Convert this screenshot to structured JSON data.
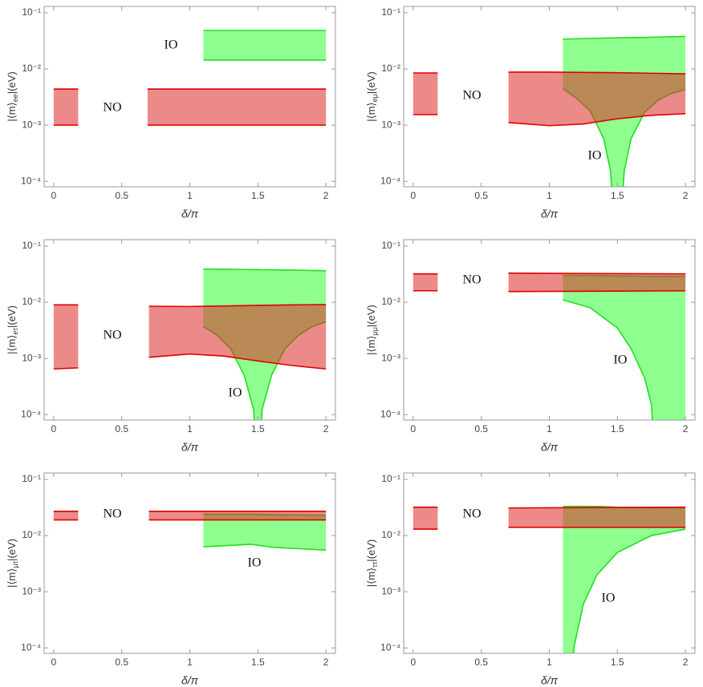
{
  "chart_data": [
    {
      "type": "band",
      "xlabel": "δ/π",
      "ylabel": {
        "text": "|⟨m⟩",
        "sub": "ee",
        "unit": "|(eV)"
      },
      "xlim": [
        -0.07,
        2.07
      ],
      "ylim": [
        8e-05,
        0.13
      ],
      "ylog": true,
      "xticks": [
        0,
        0.5,
        1,
        1.5,
        2
      ],
      "yticks": [
        {
          "value": 0.0001,
          "label": "10⁻⁴"
        },
        {
          "value": 0.001,
          "label": "10⁻³"
        },
        {
          "value": 0.01,
          "label": "10⁻²"
        },
        {
          "value": 0.1,
          "label": "10⁻¹"
        }
      ],
      "series": [
        {
          "name": "IO",
          "color": "#33ff33",
          "edge_color": "#22dd22",
          "x": [
            1.1,
            2
          ],
          "lower": [
            0.0144,
            0.0144
          ],
          "upper": [
            0.0485,
            0.0485
          ]
        },
        {
          "name": "NO",
          "color": "#dd2828",
          "edge_color": "#e00000",
          "x": [
            0,
            0.18,
            null,
            0.69,
            2
          ],
          "lower": [
            0.001,
            0.001,
            null,
            0.001,
            0.001
          ],
          "upper": [
            0.0044,
            0.0044,
            null,
            0.0044,
            0.0044
          ]
        }
      ]
    },
    {
      "type": "band",
      "xlabel": "δ/π",
      "ylabel": {
        "text": "|⟨m⟩",
        "sub": "eμ",
        "unit": "|(eV)"
      },
      "xlim": [
        -0.07,
        2.07
      ],
      "ylim": [
        8e-05,
        0.13
      ],
      "ylog": true,
      "xticks": [
        0,
        0.5,
        1,
        1.5,
        2
      ],
      "yticks": [
        {
          "value": 0.0001,
          "label": "10⁻⁴"
        },
        {
          "value": 0.001,
          "label": "10⁻³"
        },
        {
          "value": 0.01,
          "label": "10⁻²"
        },
        {
          "value": 0.1,
          "label": "10⁻¹"
        }
      ],
      "series": [
        {
          "name": "IO",
          "color": "#33ff33",
          "edge_color": "#22dd22",
          "x": [
            1.1,
            1.2,
            1.3,
            1.4,
            1.45,
            1.48,
            1.52,
            1.55,
            1.6,
            1.7,
            1.8,
            1.9,
            2
          ],
          "lower": [
            0.0045,
            0.003,
            0.0018,
            0.00057,
            0.00015,
            1e-05,
            1e-05,
            0.00015,
            0.00057,
            0.0017,
            0.0028,
            0.0037,
            0.0043
          ],
          "upper": [
            0.034,
            0.0345,
            0.035,
            0.0355,
            0.0357,
            0.0358,
            0.036,
            0.0361,
            0.0362,
            0.0365,
            0.037,
            0.0375,
            0.038
          ]
        },
        {
          "name": "NO",
          "color": "#dd2828",
          "edge_color": "#e00000",
          "x": [
            0,
            0.18,
            null,
            0.7,
            1,
            1.25,
            1.5,
            1.75,
            2
          ],
          "lower": [
            0.00154,
            0.00154,
            null,
            0.00111,
            0.00098,
            0.00105,
            0.0013,
            0.0015,
            0.0016
          ],
          "upper": [
            0.0085,
            0.0085,
            null,
            0.0088,
            0.0088,
            0.0087,
            0.0086,
            0.0084,
            0.0082
          ]
        }
      ]
    },
    {
      "type": "band",
      "xlabel": "δ/π",
      "ylabel": {
        "text": "|⟨m⟩",
        "sub": "eτ",
        "unit": "|(eV)"
      },
      "xlim": [
        -0.07,
        2.07
      ],
      "ylim": [
        8e-05,
        0.13
      ],
      "ylog": true,
      "xticks": [
        0,
        0.5,
        1,
        1.5,
        2
      ],
      "yticks": [
        {
          "value": 0.0001,
          "label": "10⁻⁴"
        },
        {
          "value": 0.001,
          "label": "10⁻³"
        },
        {
          "value": 0.01,
          "label": "10⁻²"
        },
        {
          "value": 0.1,
          "label": "10⁻¹"
        }
      ],
      "series": [
        {
          "name": "IO",
          "color": "#33ff33",
          "edge_color": "#22dd22",
          "x": [
            1.1,
            1.2,
            1.3,
            1.4,
            1.47,
            1.49,
            1.51,
            1.53,
            1.6,
            1.7,
            1.8,
            1.9,
            2
          ],
          "lower": [
            0.0037,
            0.0026,
            0.0015,
            0.0005,
            0.00012,
            1e-05,
            1e-05,
            0.00012,
            0.0005,
            0.0015,
            0.0026,
            0.0037,
            0.0045
          ],
          "upper": [
            0.039,
            0.0388,
            0.0386,
            0.0384,
            0.0382,
            0.0381,
            0.038,
            0.0379,
            0.0378,
            0.0375,
            0.0372,
            0.0368,
            0.0365
          ]
        },
        {
          "name": "NO",
          "color": "#dd2828",
          "edge_color": "#e00000",
          "x": [
            0,
            0.18,
            null,
            0.7,
            1,
            1.25,
            1.5,
            1.75,
            2
          ],
          "lower": [
            0.00065,
            0.00068,
            null,
            0.00105,
            0.0012,
            0.0011,
            0.0009,
            0.00075,
            0.00065
          ],
          "upper": [
            0.009,
            0.009,
            null,
            0.0085,
            0.0084,
            0.0086,
            0.0088,
            0.009,
            0.0091
          ]
        }
      ]
    },
    {
      "type": "band",
      "xlabel": "δ/π",
      "ylabel": {
        "text": "|⟨m⟩",
        "sub": "μμ",
        "unit": "|(eV)"
      },
      "xlim": [
        -0.07,
        2.07
      ],
      "ylim": [
        8e-05,
        0.13
      ],
      "ylog": true,
      "xticks": [
        0,
        0.5,
        1,
        1.5,
        2
      ],
      "yticks": [
        {
          "value": 0.0001,
          "label": "10⁻⁴"
        },
        {
          "value": 0.001,
          "label": "10⁻³"
        },
        {
          "value": 0.01,
          "label": "10⁻²"
        },
        {
          "value": 0.1,
          "label": "10⁻¹"
        }
      ],
      "series": [
        {
          "name": "IO",
          "color": "#33ff33",
          "edge_color": "#22dd22",
          "x": [
            1.1,
            1.3,
            1.5,
            1.6,
            1.7,
            1.75,
            1.78,
            2
          ],
          "lower": [
            0.011,
            0.008,
            0.0035,
            0.0015,
            0.00045,
            0.00015,
            1e-05,
            1e-05
          ],
          "upper": [
            0.03,
            0.03,
            0.0295,
            0.0295,
            0.029,
            0.029,
            0.029,
            0.029
          ]
        },
        {
          "name": "NO",
          "color": "#dd2828",
          "edge_color": "#e00000",
          "x": [
            0,
            0.18,
            null,
            0.7,
            2
          ],
          "lower": [
            0.016,
            0.016,
            null,
            0.0155,
            0.016
          ],
          "upper": [
            0.032,
            0.032,
            null,
            0.033,
            0.032
          ]
        }
      ]
    },
    {
      "type": "band",
      "xlabel": "δ/π",
      "ylabel": {
        "text": "|⟨m⟩",
        "sub": "μτ",
        "unit": "|(eV)"
      },
      "xlim": [
        -0.07,
        2.07
      ],
      "ylim": [
        8e-05,
        0.13
      ],
      "ylog": true,
      "xticks": [
        0,
        0.5,
        1,
        1.5,
        2
      ],
      "yticks": [
        {
          "value": 0.0001,
          "label": "10⁻⁴"
        },
        {
          "value": 0.001,
          "label": "10⁻³"
        },
        {
          "value": 0.01,
          "label": "10⁻²"
        },
        {
          "value": 0.1,
          "label": "10⁻¹"
        }
      ],
      "series": [
        {
          "name": "IO",
          "color": "#33ff33",
          "edge_color": "#22dd22",
          "x": [
            1.1,
            1.45,
            1.6,
            2
          ],
          "lower": [
            0.0063,
            0.007,
            0.0062,
            0.0055
          ],
          "upper": [
            0.024,
            0.024,
            0.0235,
            0.023
          ]
        },
        {
          "name": "NO",
          "color": "#dd2828",
          "edge_color": "#e00000",
          "x": [
            0,
            0.18,
            null,
            0.7,
            2
          ],
          "lower": [
            0.019,
            0.019,
            null,
            0.019,
            0.019
          ],
          "upper": [
            0.027,
            0.027,
            null,
            0.027,
            0.027
          ]
        }
      ]
    },
    {
      "type": "band",
      "xlabel": "δ/π",
      "ylabel": {
        "text": "|⟨m⟩",
        "sub": "ττ",
        "unit": "|(eV)"
      },
      "xlim": [
        -0.07,
        2.07
      ],
      "ylim": [
        8e-05,
        0.13
      ],
      "ylog": true,
      "xticks": [
        0,
        0.5,
        1,
        1.5,
        2
      ],
      "yticks": [
        {
          "value": 0.0001,
          "label": "10⁻⁴"
        },
        {
          "value": 0.001,
          "label": "10⁻³"
        },
        {
          "value": 0.01,
          "label": "10⁻²"
        },
        {
          "value": 0.1,
          "label": "10⁻¹"
        }
      ],
      "series": [
        {
          "name": "IO",
          "color": "#33ff33",
          "edge_color": "#22dd22",
          "x": [
            1.1,
            1.17,
            1.18,
            1.25,
            1.35,
            1.5,
            1.75,
            2
          ],
          "lower": [
            1e-05,
            1e-05,
            0.0001,
            0.0006,
            0.002,
            0.005,
            0.01,
            0.013
          ],
          "upper": [
            0.033,
            0.033,
            0.033,
            0.033,
            0.033,
            0.032,
            0.0315,
            0.031
          ]
        },
        {
          "name": "NO",
          "color": "#dd2828",
          "edge_color": "#e00000",
          "x": [
            0,
            0.18,
            null,
            0.7,
            2
          ],
          "lower": [
            0.013,
            0.013,
            null,
            0.014,
            0.014
          ],
          "upper": [
            0.032,
            0.032,
            null,
            0.031,
            0.032
          ]
        }
      ]
    }
  ]
}
